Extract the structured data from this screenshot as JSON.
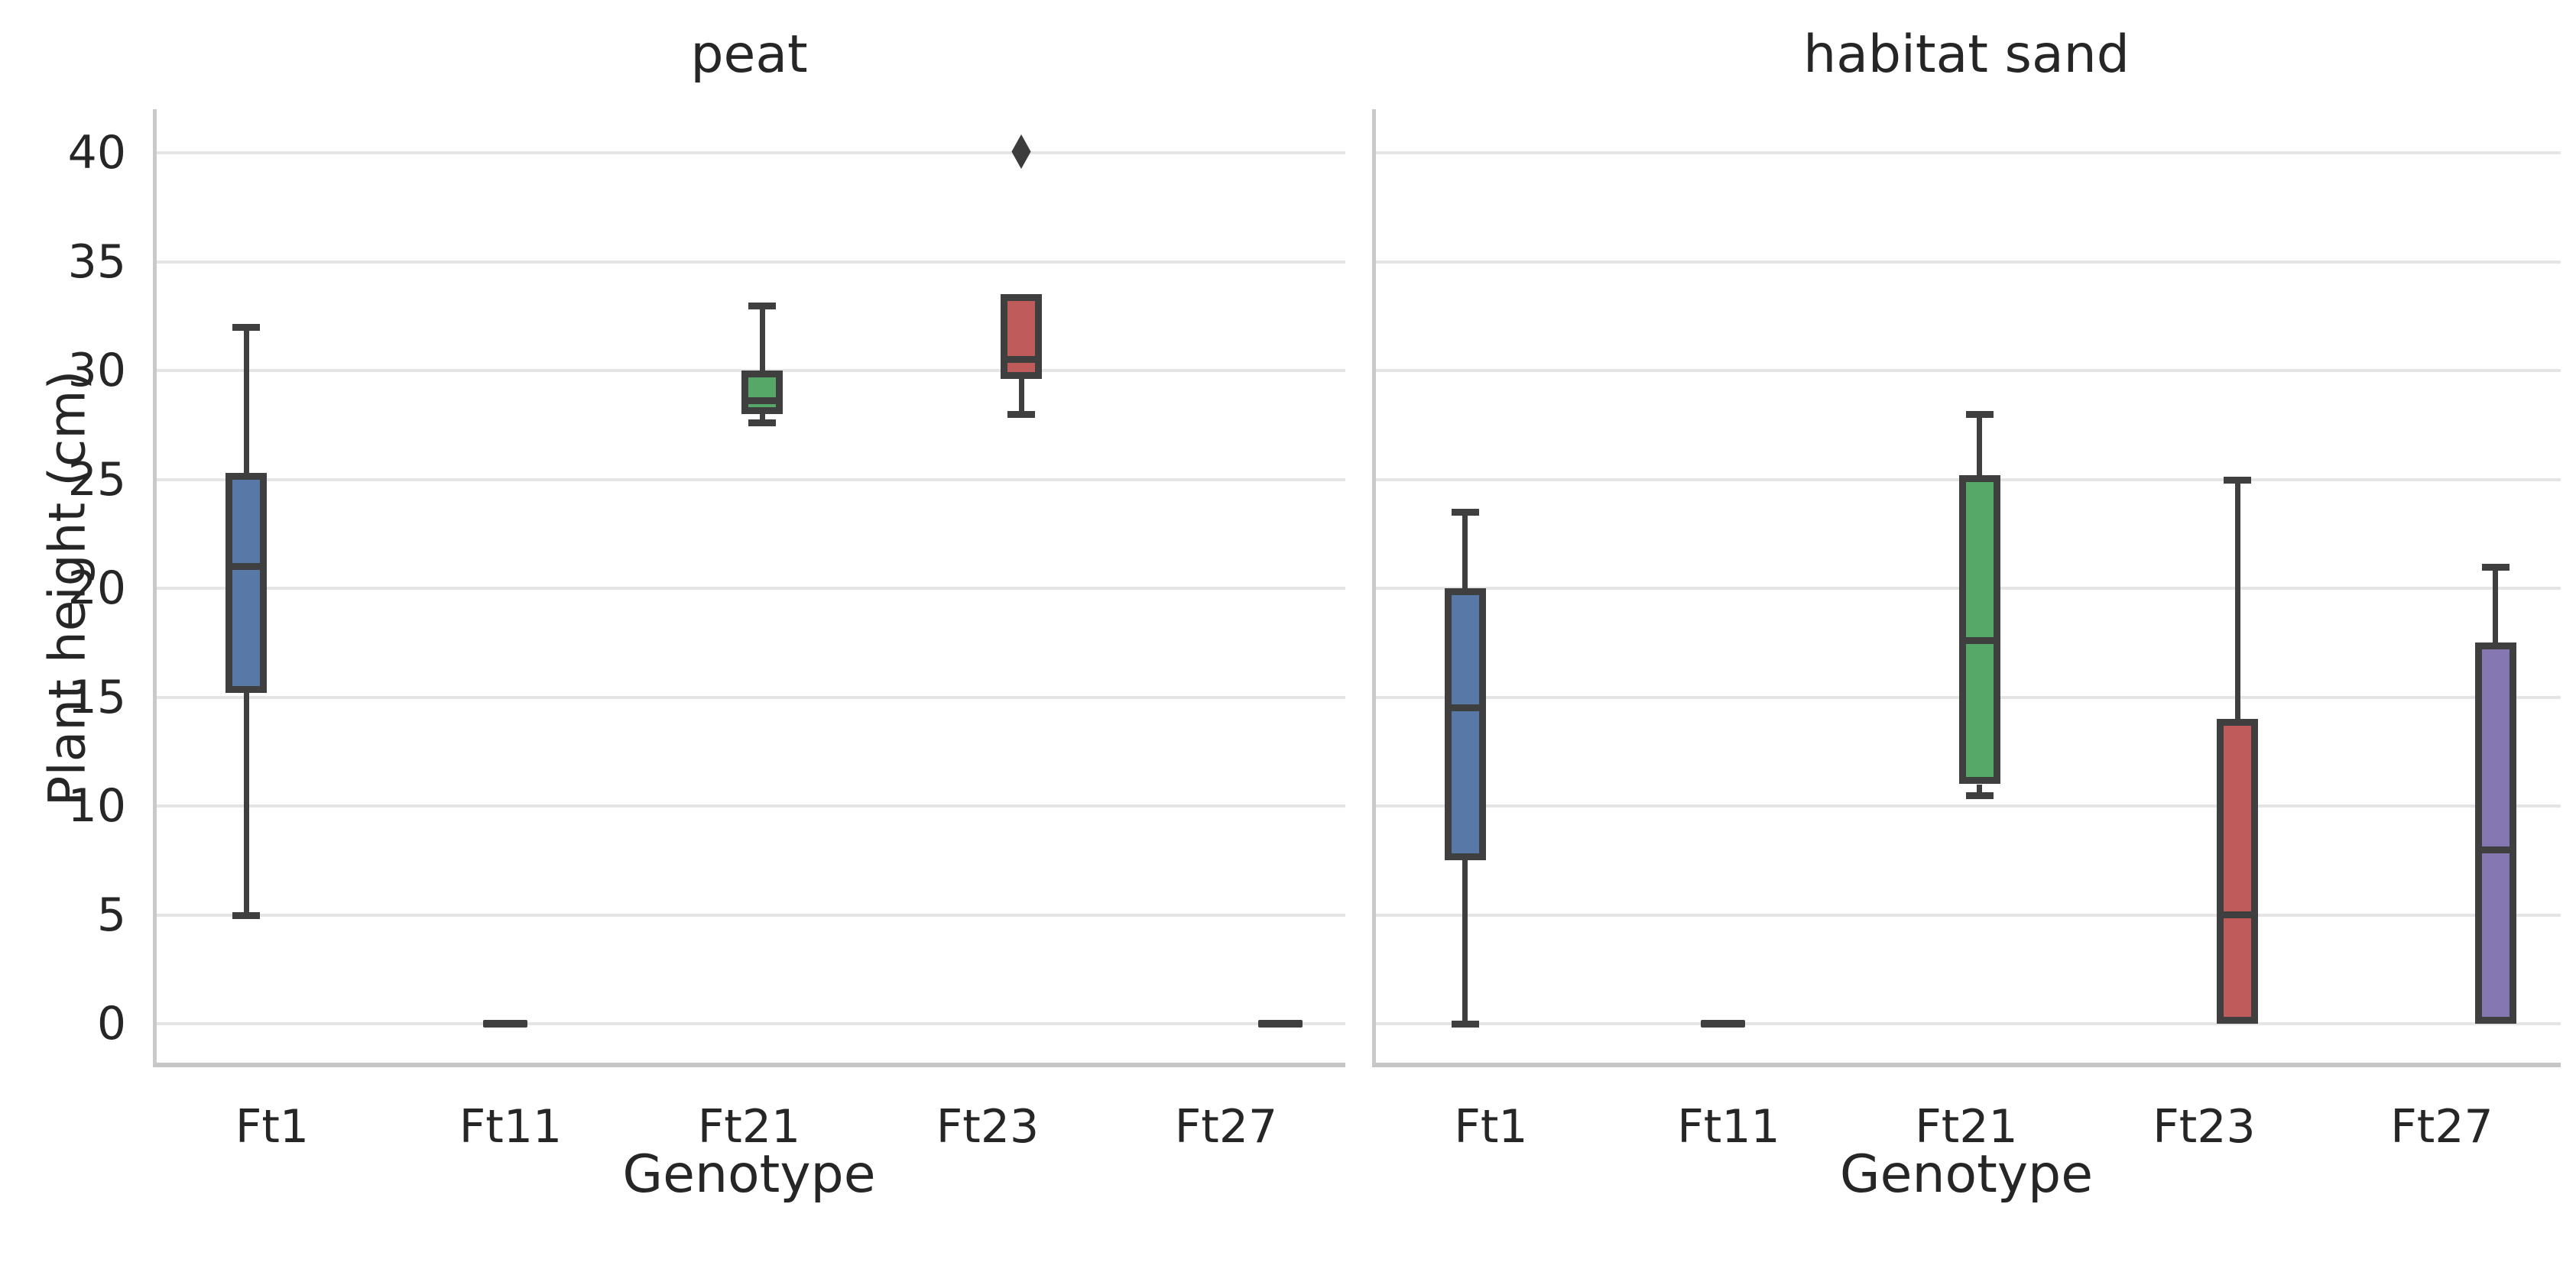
{
  "figure": {
    "background": "#ffffff"
  },
  "ylabel": "Plant height (cm)",
  "colors": {
    "box_edge": "#3f3f3f",
    "grid": "#e5e5e5",
    "spine": "#c9c9c9",
    "text": "#262626",
    "outlier_marker": "#3c3c3c",
    "blue": "#5878a8",
    "orange": "#dd8452",
    "green": "#55a868",
    "red": "#c05b5c",
    "purple": "#8578b2"
  },
  "chart_data": [
    {
      "type": "box",
      "title": "peat",
      "xlabel": "Genotype",
      "ylabel": "Plant height (cm)",
      "categories": [
        "Ft1",
        "Ft11",
        "Ft21",
        "Ft23",
        "Ft27"
      ],
      "ylim": [
        -2,
        42
      ],
      "yticks": [
        0,
        5,
        10,
        15,
        20,
        25,
        30,
        35,
        40
      ],
      "grid": "horizontal",
      "legend": "none",
      "series": [
        {
          "category": "Ft1",
          "color": "#5878a8",
          "whisker_low": 5,
          "q1": 15.2,
          "median": 21,
          "q3": 25.3,
          "whisker_high": 32,
          "outliers": []
        },
        {
          "category": "Ft11",
          "color": "#dd8452",
          "whisker_low": 0,
          "q1": 0,
          "median": 0,
          "q3": 0,
          "whisker_high": 0,
          "outliers": []
        },
        {
          "category": "Ft21",
          "color": "#55a868",
          "whisker_low": 27.6,
          "q1": 28,
          "median": 28.6,
          "q3": 30,
          "whisker_high": 33,
          "outliers": []
        },
        {
          "category": "Ft23",
          "color": "#c05b5c",
          "whisker_low": 28,
          "q1": 29.6,
          "median": 30.5,
          "q3": 33.5,
          "whisker_high": 33.5,
          "outliers": [
            40
          ]
        },
        {
          "category": "Ft27",
          "color": "#8578b2",
          "whisker_low": 0,
          "q1": 0,
          "median": 0,
          "q3": 0,
          "whisker_high": 0,
          "outliers": []
        }
      ]
    },
    {
      "type": "box",
      "title": "habitat sand",
      "xlabel": "Genotype",
      "ylabel": "Plant height (cm)",
      "categories": [
        "Ft1",
        "Ft11",
        "Ft21",
        "Ft23",
        "Ft27"
      ],
      "ylim": [
        -2,
        42
      ],
      "yticks": [
        0,
        5,
        10,
        15,
        20,
        25,
        30,
        35,
        40
      ],
      "grid": "horizontal",
      "legend": "none",
      "series": [
        {
          "category": "Ft1",
          "color": "#5878a8",
          "whisker_low": 0,
          "q1": 7.5,
          "median": 14.5,
          "q3": 20,
          "whisker_high": 23.5,
          "outliers": []
        },
        {
          "category": "Ft11",
          "color": "#dd8452",
          "whisker_low": 0,
          "q1": 0,
          "median": 0,
          "q3": 0,
          "whisker_high": 0,
          "outliers": []
        },
        {
          "category": "Ft21",
          "color": "#55a868",
          "whisker_low": 10.5,
          "q1": 11,
          "median": 17.6,
          "q3": 25.2,
          "whisker_high": 28,
          "outliers": []
        },
        {
          "category": "Ft23",
          "color": "#c05b5c",
          "whisker_low": 0,
          "q1": 0,
          "median": 5,
          "q3": 14,
          "whisker_high": 25,
          "outliers": []
        },
        {
          "category": "Ft27",
          "color": "#8578b2",
          "whisker_low": 0,
          "q1": 0,
          "median": 8,
          "q3": 17.5,
          "whisker_high": 21,
          "outliers": []
        }
      ]
    }
  ]
}
